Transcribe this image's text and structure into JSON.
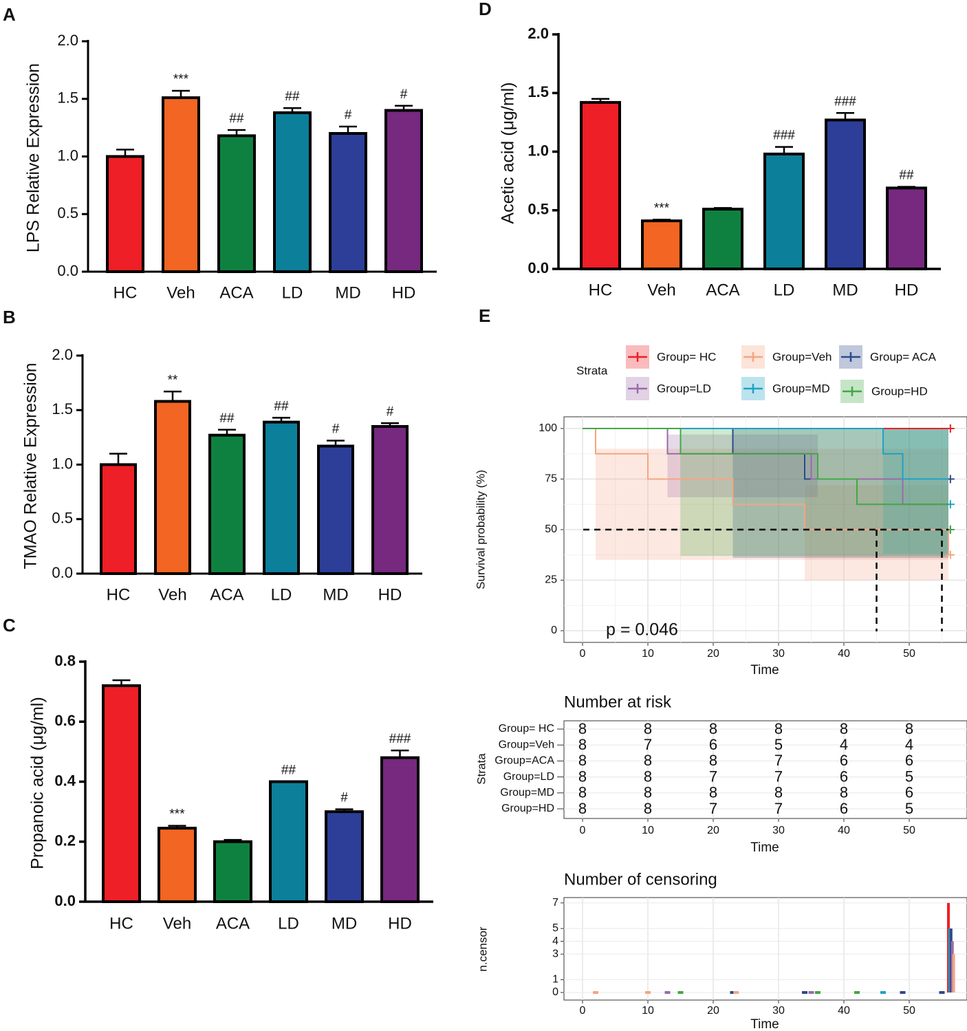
{
  "palette": [
    "#ee1f26",
    "#f26522",
    "#0e8140",
    "#0c7f9a",
    "#2d3e98",
    "#77287f"
  ],
  "chart_data": [
    {
      "panel": "A",
      "type": "bar",
      "categories": [
        "HC",
        "Veh",
        "ACA",
        "LD",
        "MD",
        "HD"
      ],
      "values": [
        1.0,
        1.51,
        1.18,
        1.38,
        1.2,
        1.4
      ],
      "errors": [
        0.06,
        0.06,
        0.05,
        0.04,
        0.06,
        0.04
      ],
      "annotations": [
        "",
        "***",
        "##",
        "##",
        "#",
        "#"
      ],
      "ylabel": "LPS Relative Expression",
      "ylim": [
        0,
        2.0
      ],
      "yticks": [
        "0.0",
        "0.5",
        "1.0",
        "1.5",
        "2.0"
      ]
    },
    {
      "panel": "B",
      "type": "bar",
      "categories": [
        "HC",
        "Veh",
        "ACA",
        "LD",
        "MD",
        "HD"
      ],
      "values": [
        1.0,
        1.58,
        1.27,
        1.39,
        1.17,
        1.35
      ],
      "errors": [
        0.1,
        0.09,
        0.05,
        0.04,
        0.05,
        0.03
      ],
      "annotations": [
        "",
        "**",
        "##",
        "##",
        "#",
        "#"
      ],
      "ylabel": "TMAO Relative Expression",
      "ylim": [
        0,
        2.0
      ],
      "yticks": [
        "0.0",
        "0.5",
        "1.0",
        "1.5",
        "2.0"
      ]
    },
    {
      "panel": "C",
      "type": "bar",
      "categories": [
        "HC",
        "Veh",
        "ACA",
        "LD",
        "MD",
        "HD"
      ],
      "values": [
        0.72,
        0.245,
        0.2,
        0.4,
        0.3,
        0.48
      ],
      "errors": [
        0.018,
        0.008,
        0.006,
        0.0,
        0.008,
        0.024
      ],
      "annotations": [
        "",
        "***",
        "",
        "##",
        "#",
        "###"
      ],
      "ylabel": "Propanoic acid (μg/ml)",
      "ylim": [
        0,
        0.8
      ],
      "yticks": [
        "0.0",
        "0.2",
        "0.4",
        "0.6",
        "0.8"
      ]
    },
    {
      "panel": "D",
      "type": "bar",
      "categories": [
        "HC",
        "Veh",
        "ACA",
        "LD",
        "MD",
        "HD"
      ],
      "values": [
        1.42,
        0.41,
        0.51,
        0.98,
        1.27,
        0.69
      ],
      "errors": [
        0.03,
        0.01,
        0.01,
        0.06,
        0.06,
        0.01
      ],
      "annotations": [
        "",
        "***",
        "",
        "###",
        "###",
        "##"
      ],
      "ylabel": "Acetic acid (μg/ml)",
      "ylim": [
        0,
        2.0
      ],
      "yticks": [
        "0.0",
        "0.5",
        "1.0",
        "1.5",
        "2.0"
      ]
    },
    {
      "panel": "E",
      "type": "line",
      "subtype": "kaplan-meier",
      "ylabel": "Survival probability (%)",
      "xlabel": "Time",
      "xlim": [
        0,
        56
      ],
      "ylim": [
        0,
        100
      ],
      "xticks": [
        "0",
        "10",
        "20",
        "30",
        "40",
        "50"
      ],
      "yticks": [
        "0",
        "25",
        "50",
        "75",
        "100"
      ],
      "pvalue": "p = 0.046",
      "median_line": 50,
      "median_times": [
        45,
        55
      ],
      "legend_title": "Strata",
      "series": [
        {
          "name": "Group= HC",
          "color": "#ee1f26",
          "steps": [
            [
              0,
              100
            ],
            [
              56.5,
              100
            ]
          ],
          "censor_y": 100
        },
        {
          "name": "Group=Veh",
          "color": "#f4a582",
          "steps": [
            [
              0,
              100
            ],
            [
              2,
              87.5
            ],
            [
              10,
              75
            ],
            [
              23,
              62.5
            ],
            [
              34,
              50
            ],
            [
              56,
              37.5
            ]
          ],
          "censor_y": 37.5
        },
        {
          "name": "Group= ACA",
          "color": "#2c4a8c",
          "steps": [
            [
              0,
              100
            ],
            [
              23,
              87.5
            ],
            [
              34,
              75
            ],
            [
              56,
              75
            ]
          ],
          "censor_y": 75
        },
        {
          "name": "Group=LD",
          "color": "#9b6aa8",
          "steps": [
            [
              0,
              100
            ],
            [
              13,
              87.5
            ],
            [
              35,
              75
            ],
            [
              49,
              62.5
            ],
            [
              56,
              62.5
            ]
          ],
          "censor_y": 50
        },
        {
          "name": "Group=MD",
          "color": "#1fa2c4",
          "steps": [
            [
              0,
              100
            ],
            [
              46,
              87.5
            ],
            [
              49,
              75
            ],
            [
              56,
              75
            ]
          ],
          "censor_y": 62.5
        },
        {
          "name": "Group=HD",
          "color": "#41a845",
          "steps": [
            [
              0,
              100
            ],
            [
              15,
              87.5
            ],
            [
              36,
              75
            ],
            [
              42,
              62.5
            ],
            [
              56,
              62.5
            ]
          ],
          "censor_y": 50
        }
      ],
      "bands": [
        {
          "color": "#f4a582",
          "x0": 2,
          "x1": 56,
          "lo": 35,
          "hi": 90
        },
        {
          "color": "#f4a582",
          "x0": 34,
          "x1": 56,
          "lo": 25,
          "hi": 72
        },
        {
          "color": "#9b6aa8",
          "x0": 13,
          "x1": 36,
          "lo": 66,
          "hi": 97
        },
        {
          "color": "#2c4a8c",
          "x0": 23,
          "x1": 56,
          "lo": 36,
          "hi": 100
        },
        {
          "color": "#1fa2c4",
          "x0": 46,
          "x1": 56,
          "lo": 38,
          "hi": 100
        },
        {
          "color": "#41a845",
          "x0": 15,
          "x1": 56,
          "lo": 37,
          "hi": 100
        }
      ],
      "risk_table": {
        "title": "Number at risk",
        "ylabel": "Strata",
        "xlabel": "Time",
        "times": [
          0,
          10,
          20,
          30,
          40,
          50
        ],
        "rows": [
          {
            "name": "Group= HC",
            "color": "#ee1f26",
            "counts": [
              8,
              8,
              8,
              8,
              8,
              8
            ]
          },
          {
            "name": "Group=Veh",
            "color": "#f4a582",
            "counts": [
              8,
              7,
              6,
              5,
              4,
              4
            ]
          },
          {
            "name": "Group=ACA",
            "color": "#2c4a8c",
            "counts": [
              8,
              8,
              8,
              7,
              6,
              6
            ]
          },
          {
            "name": "Group=LD",
            "color": "#9b6aa8",
            "counts": [
              8,
              8,
              7,
              7,
              6,
              5
            ]
          },
          {
            "name": "Group=MD",
            "color": "#1fa2c4",
            "counts": [
              8,
              8,
              8,
              8,
              8,
              6
            ]
          },
          {
            "name": "Group=HD",
            "color": "#41a845",
            "counts": [
              8,
              8,
              7,
              7,
              6,
              5
            ]
          }
        ]
      },
      "censor_plot": {
        "title": "Number of censoring",
        "ylabel": "n.censor",
        "xlabel": "Time",
        "yticks": [
          "0",
          "1",
          "3",
          "4",
          "5",
          "7"
        ],
        "ytick_values": [
          0,
          1,
          3,
          4,
          5,
          7
        ],
        "ylim": [
          0,
          7
        ],
        "zero_ticks": [
          {
            "t": 2,
            "color": "#f4a582"
          },
          {
            "t": 10,
            "color": "#f4a582"
          },
          {
            "t": 13,
            "color": "#9b6aa8"
          },
          {
            "t": 15,
            "color": "#41a845"
          },
          {
            "t": 23,
            "color": "#2c4a8c"
          },
          {
            "t": 23.5,
            "color": "#f4a582"
          },
          {
            "t": 34,
            "color": "#2c4a8c"
          },
          {
            "t": 35,
            "color": "#9b6aa8"
          },
          {
            "t": 36,
            "color": "#41a845"
          },
          {
            "t": 42,
            "color": "#41a845"
          },
          {
            "t": 46,
            "color": "#1fa2c4"
          },
          {
            "t": 49,
            "color": "#2c4a8c"
          },
          {
            "t": 55,
            "color": "#2c4a8c"
          }
        ],
        "bars": [
          {
            "t": 56.0,
            "value": 7,
            "color": "#ee1f26"
          },
          {
            "t": 56.2,
            "value": 5,
            "color": "#1fa2c4"
          },
          {
            "t": 56.4,
            "value": 5,
            "color": "#2c4a8c"
          },
          {
            "t": 56.6,
            "value": 4,
            "color": "#9b6aa8"
          },
          {
            "t": 56.8,
            "value": 3,
            "color": "#f4a582"
          }
        ]
      }
    }
  ]
}
